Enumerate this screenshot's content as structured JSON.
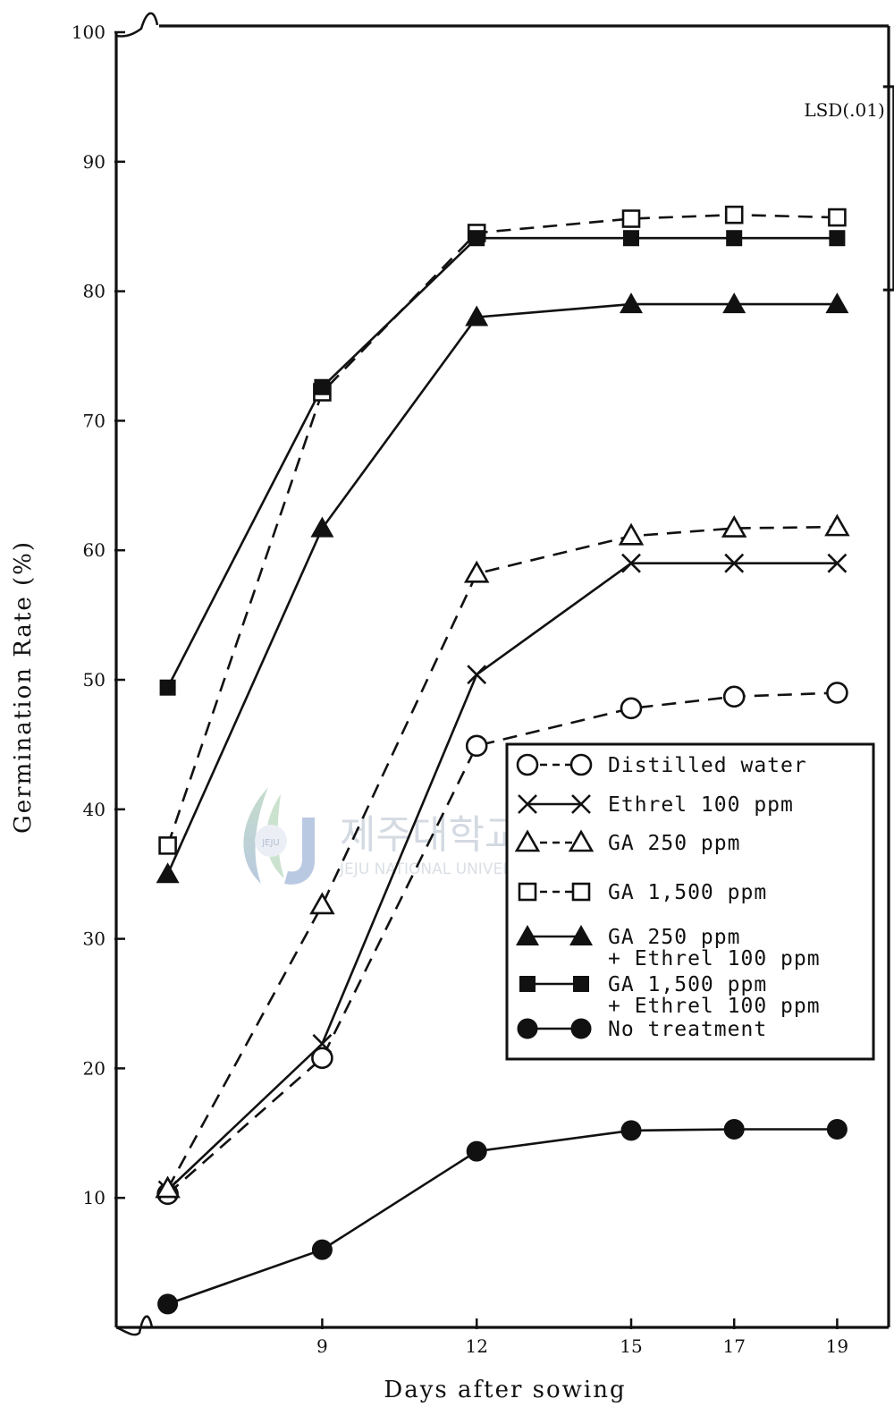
{
  "chart_data": {
    "type": "line",
    "title": "",
    "xlabel": "Days after sowing",
    "ylabel": "Germination Rate (%)",
    "ylim": [
      0,
      100
    ],
    "xlim": [
      5,
      20
    ],
    "x_ticks": [
      {
        "value": 9,
        "label": "9"
      },
      {
        "value": 12,
        "label": "12"
      },
      {
        "value": 15,
        "label": "15"
      },
      {
        "value": 17,
        "label": "17"
      },
      {
        "value": 19,
        "label": "19"
      }
    ],
    "y_ticks": [
      {
        "value": 10,
        "label": "10"
      },
      {
        "value": 20,
        "label": "20"
      },
      {
        "value": 30,
        "label": "30"
      },
      {
        "value": 40,
        "label": "40"
      },
      {
        "value": 50,
        "label": "50"
      },
      {
        "value": 60,
        "label": "60"
      },
      {
        "value": 70,
        "label": "70"
      },
      {
        "value": 80,
        "label": "80"
      },
      {
        "value": 90,
        "label": "90"
      },
      {
        "value": 100,
        "label": "100"
      }
    ],
    "grid": false,
    "legend_position": "center-right",
    "lsd": {
      "label": "LSD(.01)",
      "x": 20.1,
      "y_low": 80.1,
      "y_high": 95.8
    },
    "series": [
      {
        "name": "Distilled water",
        "marker": "circle-open",
        "line": "dashed",
        "x": [
          6,
          9,
          12,
          15,
          17,
          19
        ],
        "y": [
          10.3,
          20.8,
          44.9,
          47.8,
          48.7,
          49.0
        ]
      },
      {
        "name": "Ethrel 100 ppm",
        "marker": "cross",
        "line": "solid",
        "x": [
          6,
          9,
          12,
          15,
          17,
          19
        ],
        "y": [
          10.6,
          21.9,
          50.4,
          59.0,
          59.0,
          59.0
        ]
      },
      {
        "name": "GA 250 ppm",
        "marker": "triangle-open",
        "line": "dashed",
        "x": [
          6,
          9,
          12,
          15,
          17,
          19
        ],
        "y": [
          10.7,
          32.6,
          58.2,
          61.1,
          61.7,
          61.8
        ]
      },
      {
        "name": "GA 1,500 ppm",
        "marker": "square-open",
        "line": "dashed",
        "x": [
          6,
          9,
          12,
          15,
          17,
          19
        ],
        "y": [
          37.2,
          72.2,
          84.5,
          85.6,
          85.9,
          85.7
        ]
      },
      {
        "name": "GA 250 ppm",
        "name_line2": "+ Ethrel 100 ppm",
        "marker": "triangle-filled",
        "line": "solid",
        "x": [
          6,
          9,
          12,
          15,
          17,
          19
        ],
        "y": [
          35.0,
          61.7,
          78.0,
          79.0,
          79.0,
          79.0
        ]
      },
      {
        "name": "GA 1,500 ppm",
        "name_line2": "+ Ethrel 100 ppm",
        "marker": "square-filled",
        "line": "solid",
        "x": [
          6,
          9,
          12,
          15,
          17,
          19
        ],
        "y": [
          49.4,
          72.6,
          84.1,
          84.1,
          84.1,
          84.1
        ]
      },
      {
        "name": "No treatment",
        "marker": "circle-filled",
        "line": "solid",
        "x": [
          6,
          9,
          12,
          15,
          17,
          19
        ],
        "y": [
          1.8,
          6.0,
          13.6,
          15.2,
          15.3,
          15.3
        ]
      }
    ]
  },
  "watermark": {
    "title": "제주대학교 중앙도서관",
    "subtitle": "JEJU NATIONAL UNIVERSITY LIBRARY",
    "logo_text": "JEJU"
  },
  "colors": {
    "ink": "#111111",
    "watermark": "#b9c3cf",
    "background": "#ffffff"
  }
}
